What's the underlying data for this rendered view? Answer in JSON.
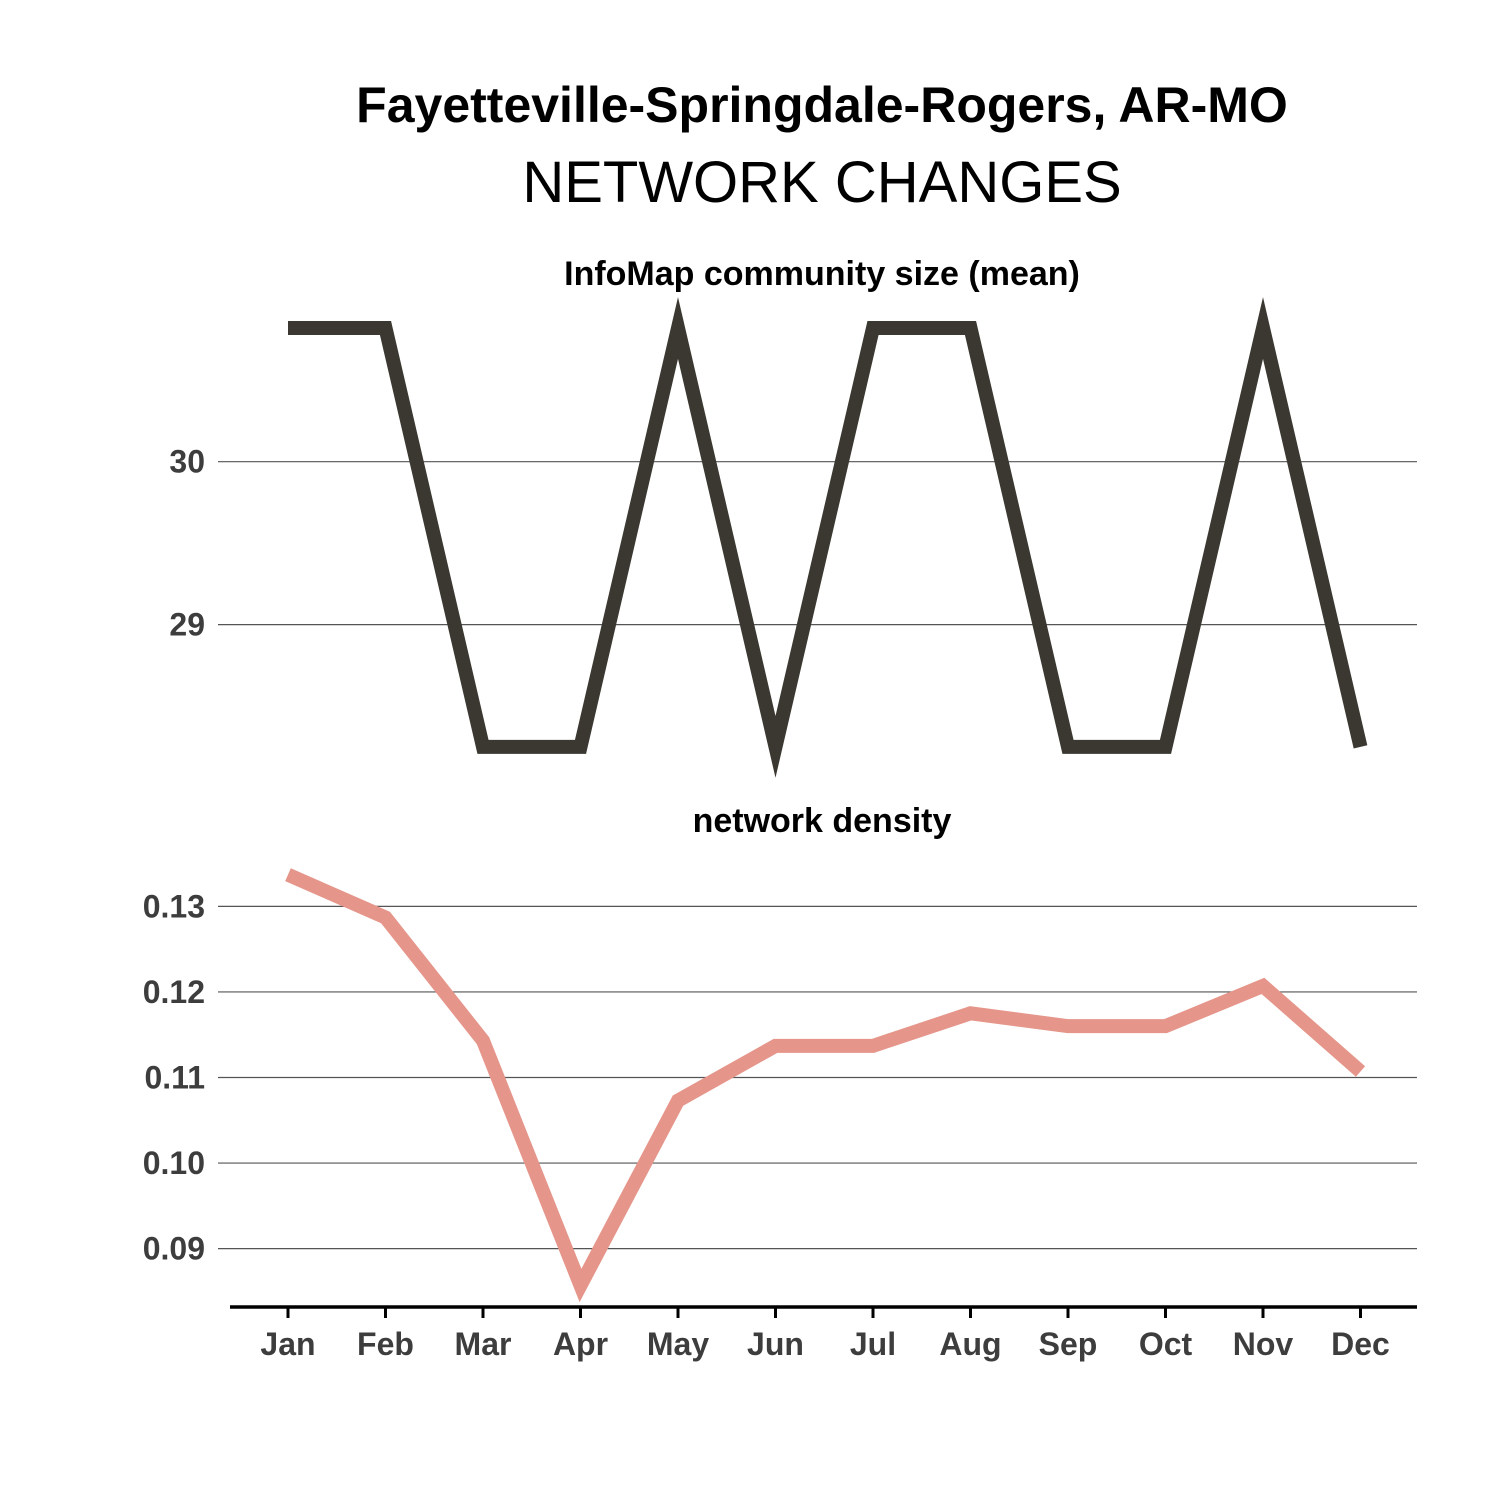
{
  "title": "Fayetteville-Springdale-Rogers, AR-MO",
  "subtitle": "NETWORK CHANGES",
  "chart_data": [
    {
      "type": "line",
      "title": "InfoMap community size (mean)",
      "categories": [
        "Jan",
        "Feb",
        "Mar",
        "Apr",
        "May",
        "Jun",
        "Jul",
        "Aug",
        "Sep",
        "Oct",
        "Nov",
        "Dec"
      ],
      "series": [
        {
          "values": [
            30.82,
            30.82,
            28.25,
            28.25,
            30.82,
            28.25,
            30.82,
            30.82,
            28.25,
            28.25,
            30.82,
            28.25
          ]
        }
      ],
      "yticks": [
        29,
        30
      ],
      "ylim": [
        28.2,
        30.9
      ],
      "grid": true,
      "color": "#3a3830"
    },
    {
      "type": "line",
      "title": "network density",
      "categories": [
        "Jan",
        "Feb",
        "Mar",
        "Apr",
        "May",
        "Jun",
        "Jul",
        "Aug",
        "Sep",
        "Oct",
        "Nov",
        "Dec"
      ],
      "series": [
        {
          "values": [
            0.1337,
            0.1287,
            0.1143,
            0.0857,
            0.1073,
            0.1137,
            0.1137,
            0.1175,
            0.116,
            0.116,
            0.1207,
            0.1107
          ]
        }
      ],
      "yticks": [
        0.09,
        0.1,
        0.11,
        0.12,
        0.13
      ],
      "ylim": [
        0.084,
        0.136
      ],
      "grid": true,
      "color": "#e59589"
    }
  ]
}
